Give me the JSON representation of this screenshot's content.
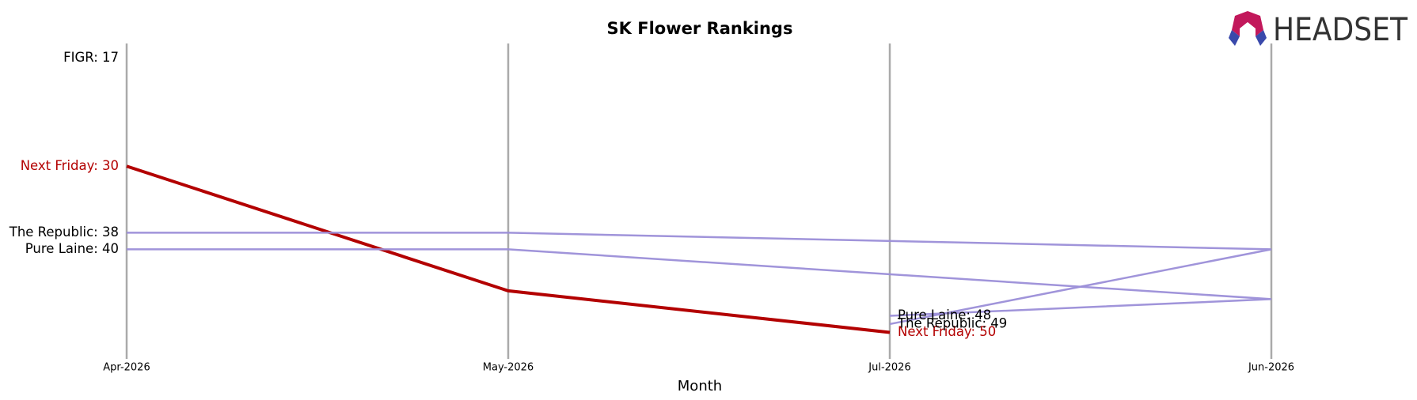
{
  "chart_data": {
    "type": "line",
    "title": "SK Flower Rankings",
    "x_label": "Month",
    "logo": "HEADSET",
    "categories": [
      "Apr-2026",
      "May-2026",
      "Jul-2026",
      "Jun-2026"
    ],
    "ylim": [
      53,
      15
    ],
    "grid": true,
    "series": [
      {
        "name": "FIGR",
        "color": "#9b8ed8",
        "label_color": "#000000",
        "x": [
          "Apr-2026"
        ],
        "values": [
          17
        ],
        "start_label": "FIGR: 17"
      },
      {
        "name": "Next Friday",
        "color": "#b30000",
        "label_color": "#b30000",
        "x": [
          "Apr-2026",
          "May-2026",
          "Jul-2026"
        ],
        "values": [
          30,
          45,
          50
        ],
        "start_label": "Next Friday: 30",
        "end_label": "Next Friday: 50"
      },
      {
        "name": "The Republic",
        "color": "#9b8ed8",
        "label_color": "#000000",
        "x": [
          "Apr-2026",
          "May-2026",
          "Jun-2026",
          "Jul-2026"
        ],
        "values": [
          38,
          38,
          40,
          49
        ],
        "start_label": "The Republic: 38",
        "end_label": "The Republic: 49"
      },
      {
        "name": "Pure Laine",
        "color": "#9b8ed8",
        "label_color": "#000000",
        "x": [
          "Apr-2026",
          "May-2026",
          "Jun-2026",
          "Jul-2026"
        ],
        "values": [
          40,
          40,
          46,
          48
        ],
        "start_label": "Pure Laine: 40",
        "end_label": "Pure Laine: 48"
      }
    ]
  }
}
